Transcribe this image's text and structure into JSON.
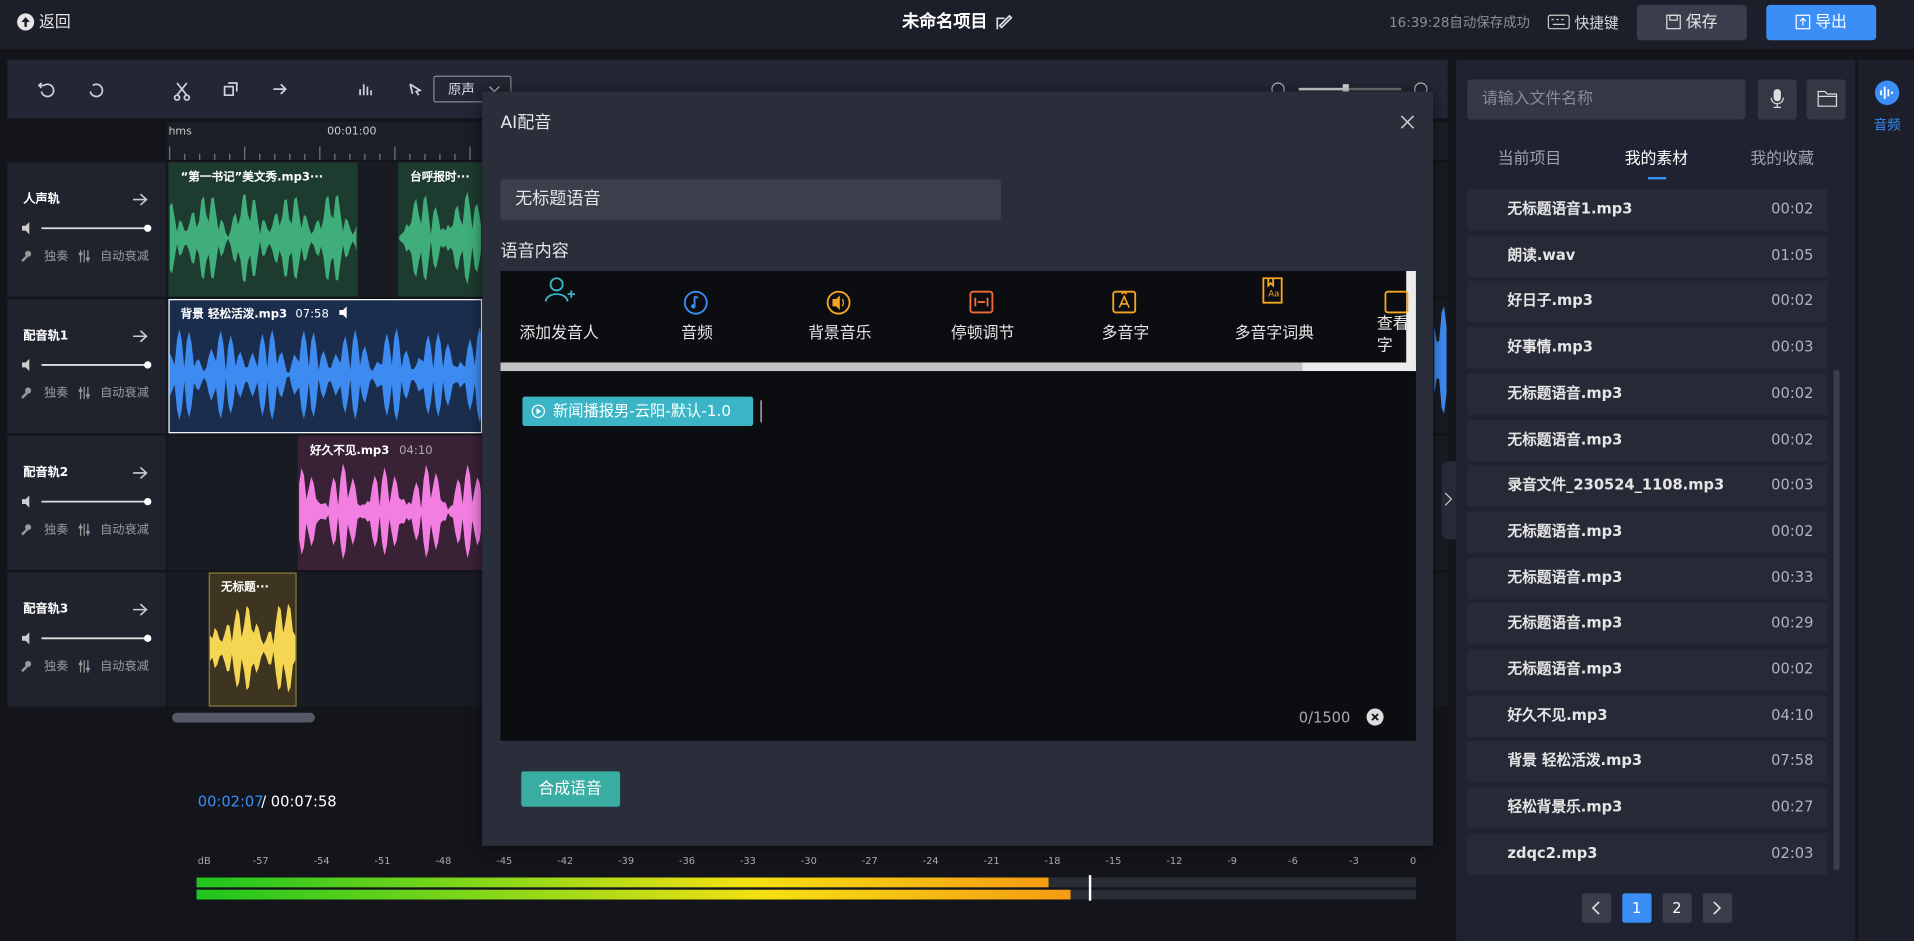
{
  "topbar": {
    "back": "返回",
    "title": "未命名项目",
    "autosave": "16:39:28自动保存成功",
    "shortcuts": "快捷键",
    "save": "保存",
    "export": "导出"
  },
  "toolbar": {
    "voice_select": "原声"
  },
  "ruler": {
    "unit": "hms",
    "mark": "00:01:00"
  },
  "tracks": [
    {
      "name": "人声轨",
      "solo": "独奏",
      "duck": "自动衰减"
    },
    {
      "name": "配音轨1",
      "solo": "独奏",
      "duck": "自动衰减"
    },
    {
      "name": "配音轨2",
      "solo": "独奏",
      "duck": "自动衰减"
    },
    {
      "name": "配音轨3",
      "solo": "独奏",
      "duck": "自动衰减"
    }
  ],
  "clips": [
    {
      "label": "“第一书记”美文秀.mp3···"
    },
    {
      "label": "台呼报时···"
    },
    {
      "label": "背景 轻松活泼.mp3",
      "duration": "07:58"
    },
    {
      "label": "好久不见.mp3",
      "duration": "04:10"
    },
    {
      "label": "无标题···"
    }
  ],
  "playback": {
    "current": "00:02:07",
    "total": "/ 00:07:58"
  },
  "meter": {
    "unit": "dB",
    "ticks": [
      "-57",
      "-54",
      "-51",
      "-48",
      "-45",
      "-42",
      "-39",
      "-36",
      "-33",
      "-30",
      "-27",
      "-24",
      "-21",
      "-18",
      "-15",
      "-12",
      "-9",
      "-6",
      "-3",
      "0"
    ]
  },
  "dialog": {
    "title": "AI配音",
    "name_value": "无标题语音",
    "content_label": "语音内容",
    "tools": [
      "添加发音人",
      "音频",
      "背景音乐",
      "停顿调节",
      "多音字",
      "多音字词典",
      "查看字"
    ],
    "voice_tag": "新闻播报男-云阳-默认-1.0",
    "counter": "0/1500",
    "submit": "合成语音"
  },
  "library": {
    "search_placeholder": "请输入文件名称",
    "tabs": [
      "当前项目",
      "我的素材",
      "我的收藏"
    ],
    "files": [
      {
        "name": "无标题语音1.mp3",
        "duration": "00:02"
      },
      {
        "name": "朗读.wav",
        "duration": "01:05"
      },
      {
        "name": "好日子.mp3",
        "duration": "00:02"
      },
      {
        "name": "好事情.mp3",
        "duration": "00:03"
      },
      {
        "name": "无标题语音.mp3",
        "duration": "00:02"
      },
      {
        "name": "无标题语音.mp3",
        "duration": "00:02"
      },
      {
        "name": "录音文件_230524_1108.mp3",
        "duration": "00:03"
      },
      {
        "name": "无标题语音.mp3",
        "duration": "00:02"
      },
      {
        "name": "无标题语音.mp3",
        "duration": "00:33"
      },
      {
        "name": "无标题语音.mp3",
        "duration": "00:29"
      },
      {
        "name": "无标题语音.mp3",
        "duration": "00:02"
      },
      {
        "name": "好久不见.mp3",
        "duration": "04:10"
      },
      {
        "name": "背景 轻松活泼.mp3",
        "duration": "07:58"
      },
      {
        "name": "轻松背景乐.mp3",
        "duration": "00:27"
      },
      {
        "name": "zdqc2.mp3",
        "duration": "02:03"
      }
    ],
    "pages": [
      "1",
      "2"
    ]
  },
  "sidebar": {
    "audio": "音频"
  }
}
